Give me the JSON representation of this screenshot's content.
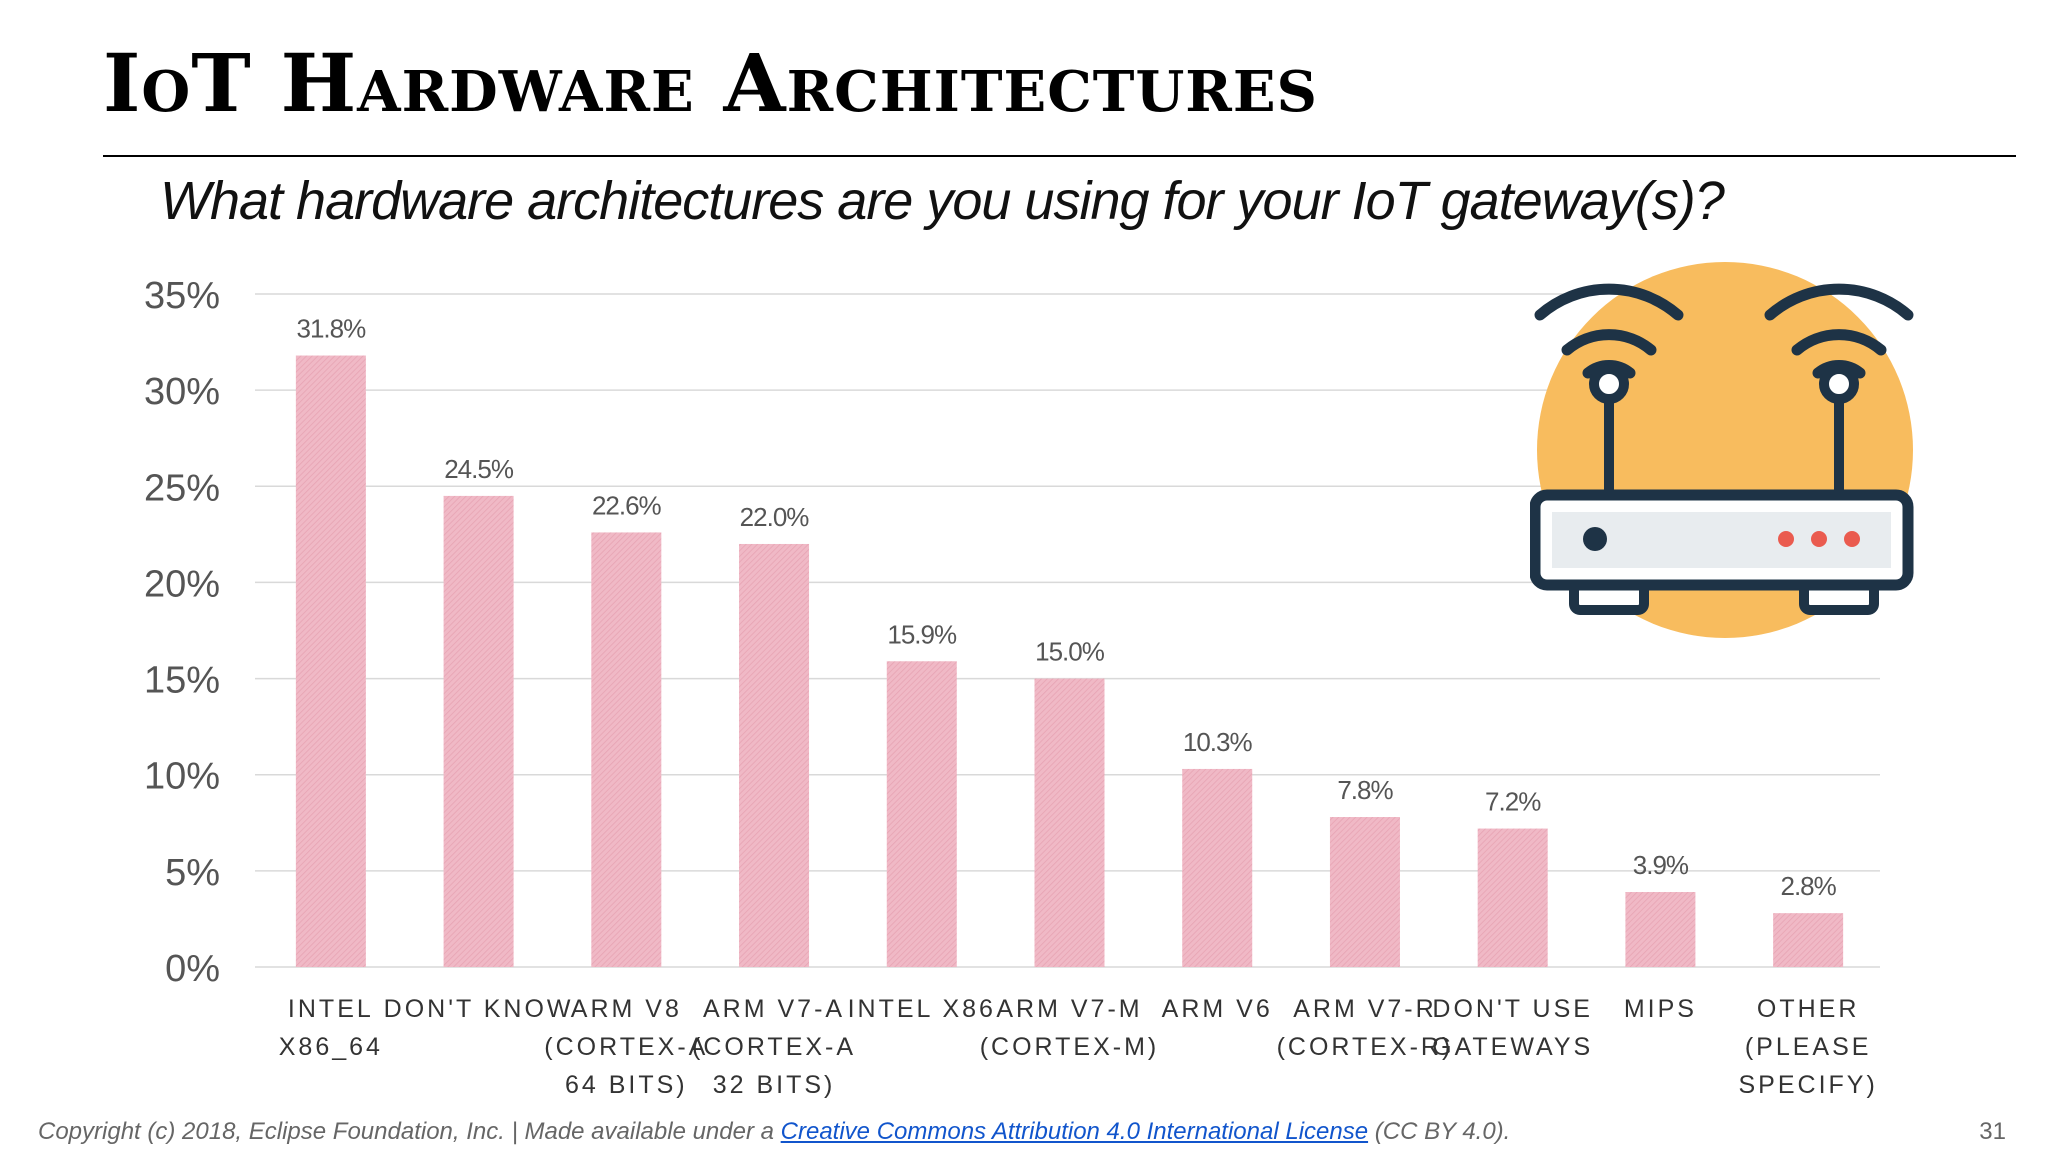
{
  "slide": {
    "title": "IoT Hardware Architectures",
    "question": "What hardware architectures are you using for your IoT gateway(s)?",
    "footer_prefix": "Copyright (c) 2018, Eclipse Foundation, Inc. | Made available under a ",
    "footer_link": "Creative Commons Attribution 4.0 International License",
    "footer_suffix": " (CC BY 4.0).",
    "page_number": "31"
  },
  "colors": {
    "bar": "#f0b9c6",
    "bar_hatch": "#e7a3b3",
    "grid": "#d9d9d9",
    "axis_text": "#555555",
    "illustration_circle": "#f8bc5e",
    "illustration_dark": "#1e3346",
    "illustration_dots": "#ea5b4f"
  },
  "illustration": {
    "icon": "wifi-router-icon"
  },
  "chart_data": {
    "type": "bar",
    "categories": [
      [
        "INTEL",
        "X86_64"
      ],
      [
        "DON'T KNOW"
      ],
      [
        "ARM V8",
        "(CORTEX-A",
        "64 BITS)"
      ],
      [
        "ARM V7-A",
        "(CORTEX-A",
        "32 BITS)"
      ],
      [
        "INTEL X86"
      ],
      [
        "ARM V7-M",
        "(CORTEX-M)"
      ],
      [
        "ARM V6"
      ],
      [
        "ARM V7-R",
        "(CORTEX-R)"
      ],
      [
        "DON'T USE",
        "GATEWAYS"
      ],
      [
        "MIPS"
      ],
      [
        "OTHER",
        "(PLEASE",
        "SPECIFY)"
      ]
    ],
    "values": [
      31.8,
      24.5,
      22.6,
      22.0,
      15.9,
      15.0,
      10.3,
      7.8,
      7.2,
      3.9,
      2.8
    ],
    "value_labels": [
      "31.8%",
      "24.5%",
      "22.6%",
      "22.0%",
      "15.9%",
      "15.0%",
      "10.3%",
      "7.8%",
      "7.2%",
      "3.9%",
      "2.8%"
    ],
    "yticks": [
      0,
      5,
      10,
      15,
      20,
      25,
      30,
      35
    ],
    "ytick_labels": [
      "0%",
      "5%",
      "10%",
      "15%",
      "20%",
      "25%",
      "30%",
      "35%"
    ],
    "ylim": [
      0,
      35
    ],
    "grid": true
  }
}
